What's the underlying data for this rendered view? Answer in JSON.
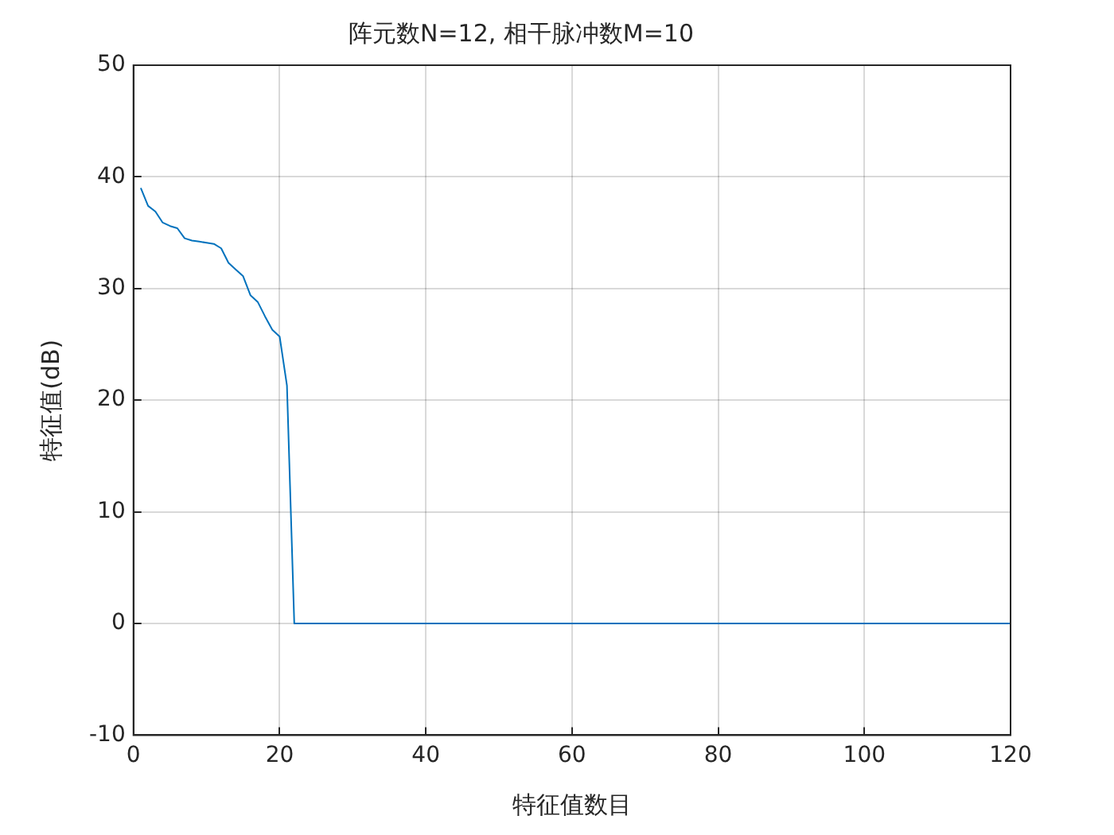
{
  "chart_data": {
    "type": "line",
    "title": "阵元数N=12, 相干脉冲数M=10",
    "xlabel": "特征值数目",
    "ylabel": "特征值(dB)",
    "x": [
      1,
      2,
      3,
      4,
      5,
      6,
      7,
      8,
      9,
      10,
      11,
      12,
      13,
      14,
      15,
      16,
      17,
      18,
      19,
      20,
      21,
      22,
      120
    ],
    "series": [
      {
        "color": "#0072bd",
        "values": [
          39,
          37.4,
          36.9,
          35.9,
          35.6,
          35.4,
          34.5,
          34.3,
          34.2,
          34.1,
          34,
          33.6,
          32.3,
          31.7,
          31.1,
          29.4,
          28.8,
          27.5,
          26.3,
          25.7,
          21.3,
          0,
          0
        ]
      }
    ],
    "xlim": [
      0,
      120
    ],
    "xticks": [
      0,
      20,
      40,
      60,
      80,
      100,
      120
    ],
    "ylim": [
      -10,
      50
    ],
    "yticks": [
      -10,
      0,
      10,
      20,
      30,
      40,
      50
    ],
    "grid": true,
    "legend": false,
    "marker": "none",
    "line_style": "solid"
  }
}
